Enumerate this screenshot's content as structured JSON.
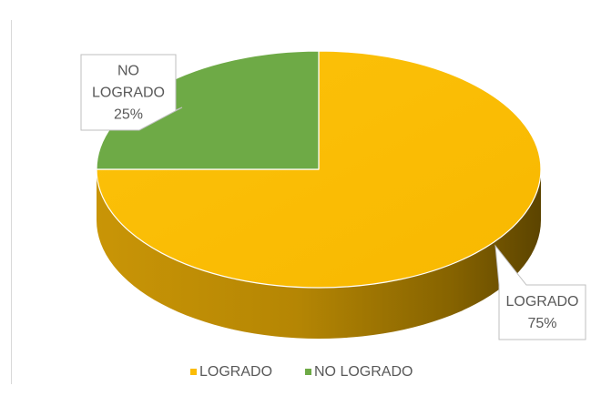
{
  "chart_data": {
    "type": "pie",
    "title": "",
    "three_d": true,
    "categories": [
      "LOGRADO",
      "NO LOGRADO"
    ],
    "values": [
      75,
      25
    ],
    "data_labels": [
      {
        "category": "LOGRADO",
        "text": [
          "LOGRADO",
          "75%"
        ]
      },
      {
        "category": "NO LOGRADO",
        "text": [
          "NO",
          "LOGRADO",
          "25%"
        ]
      }
    ],
    "colors": [
      "#FBBC05",
      "#6EAA46"
    ],
    "legend": {
      "position": "bottom",
      "items": [
        {
          "label": "LOGRADO",
          "color": "#FBBC05"
        },
        {
          "label": "NO LOGRADO",
          "color": "#6EAA46"
        }
      ]
    }
  }
}
